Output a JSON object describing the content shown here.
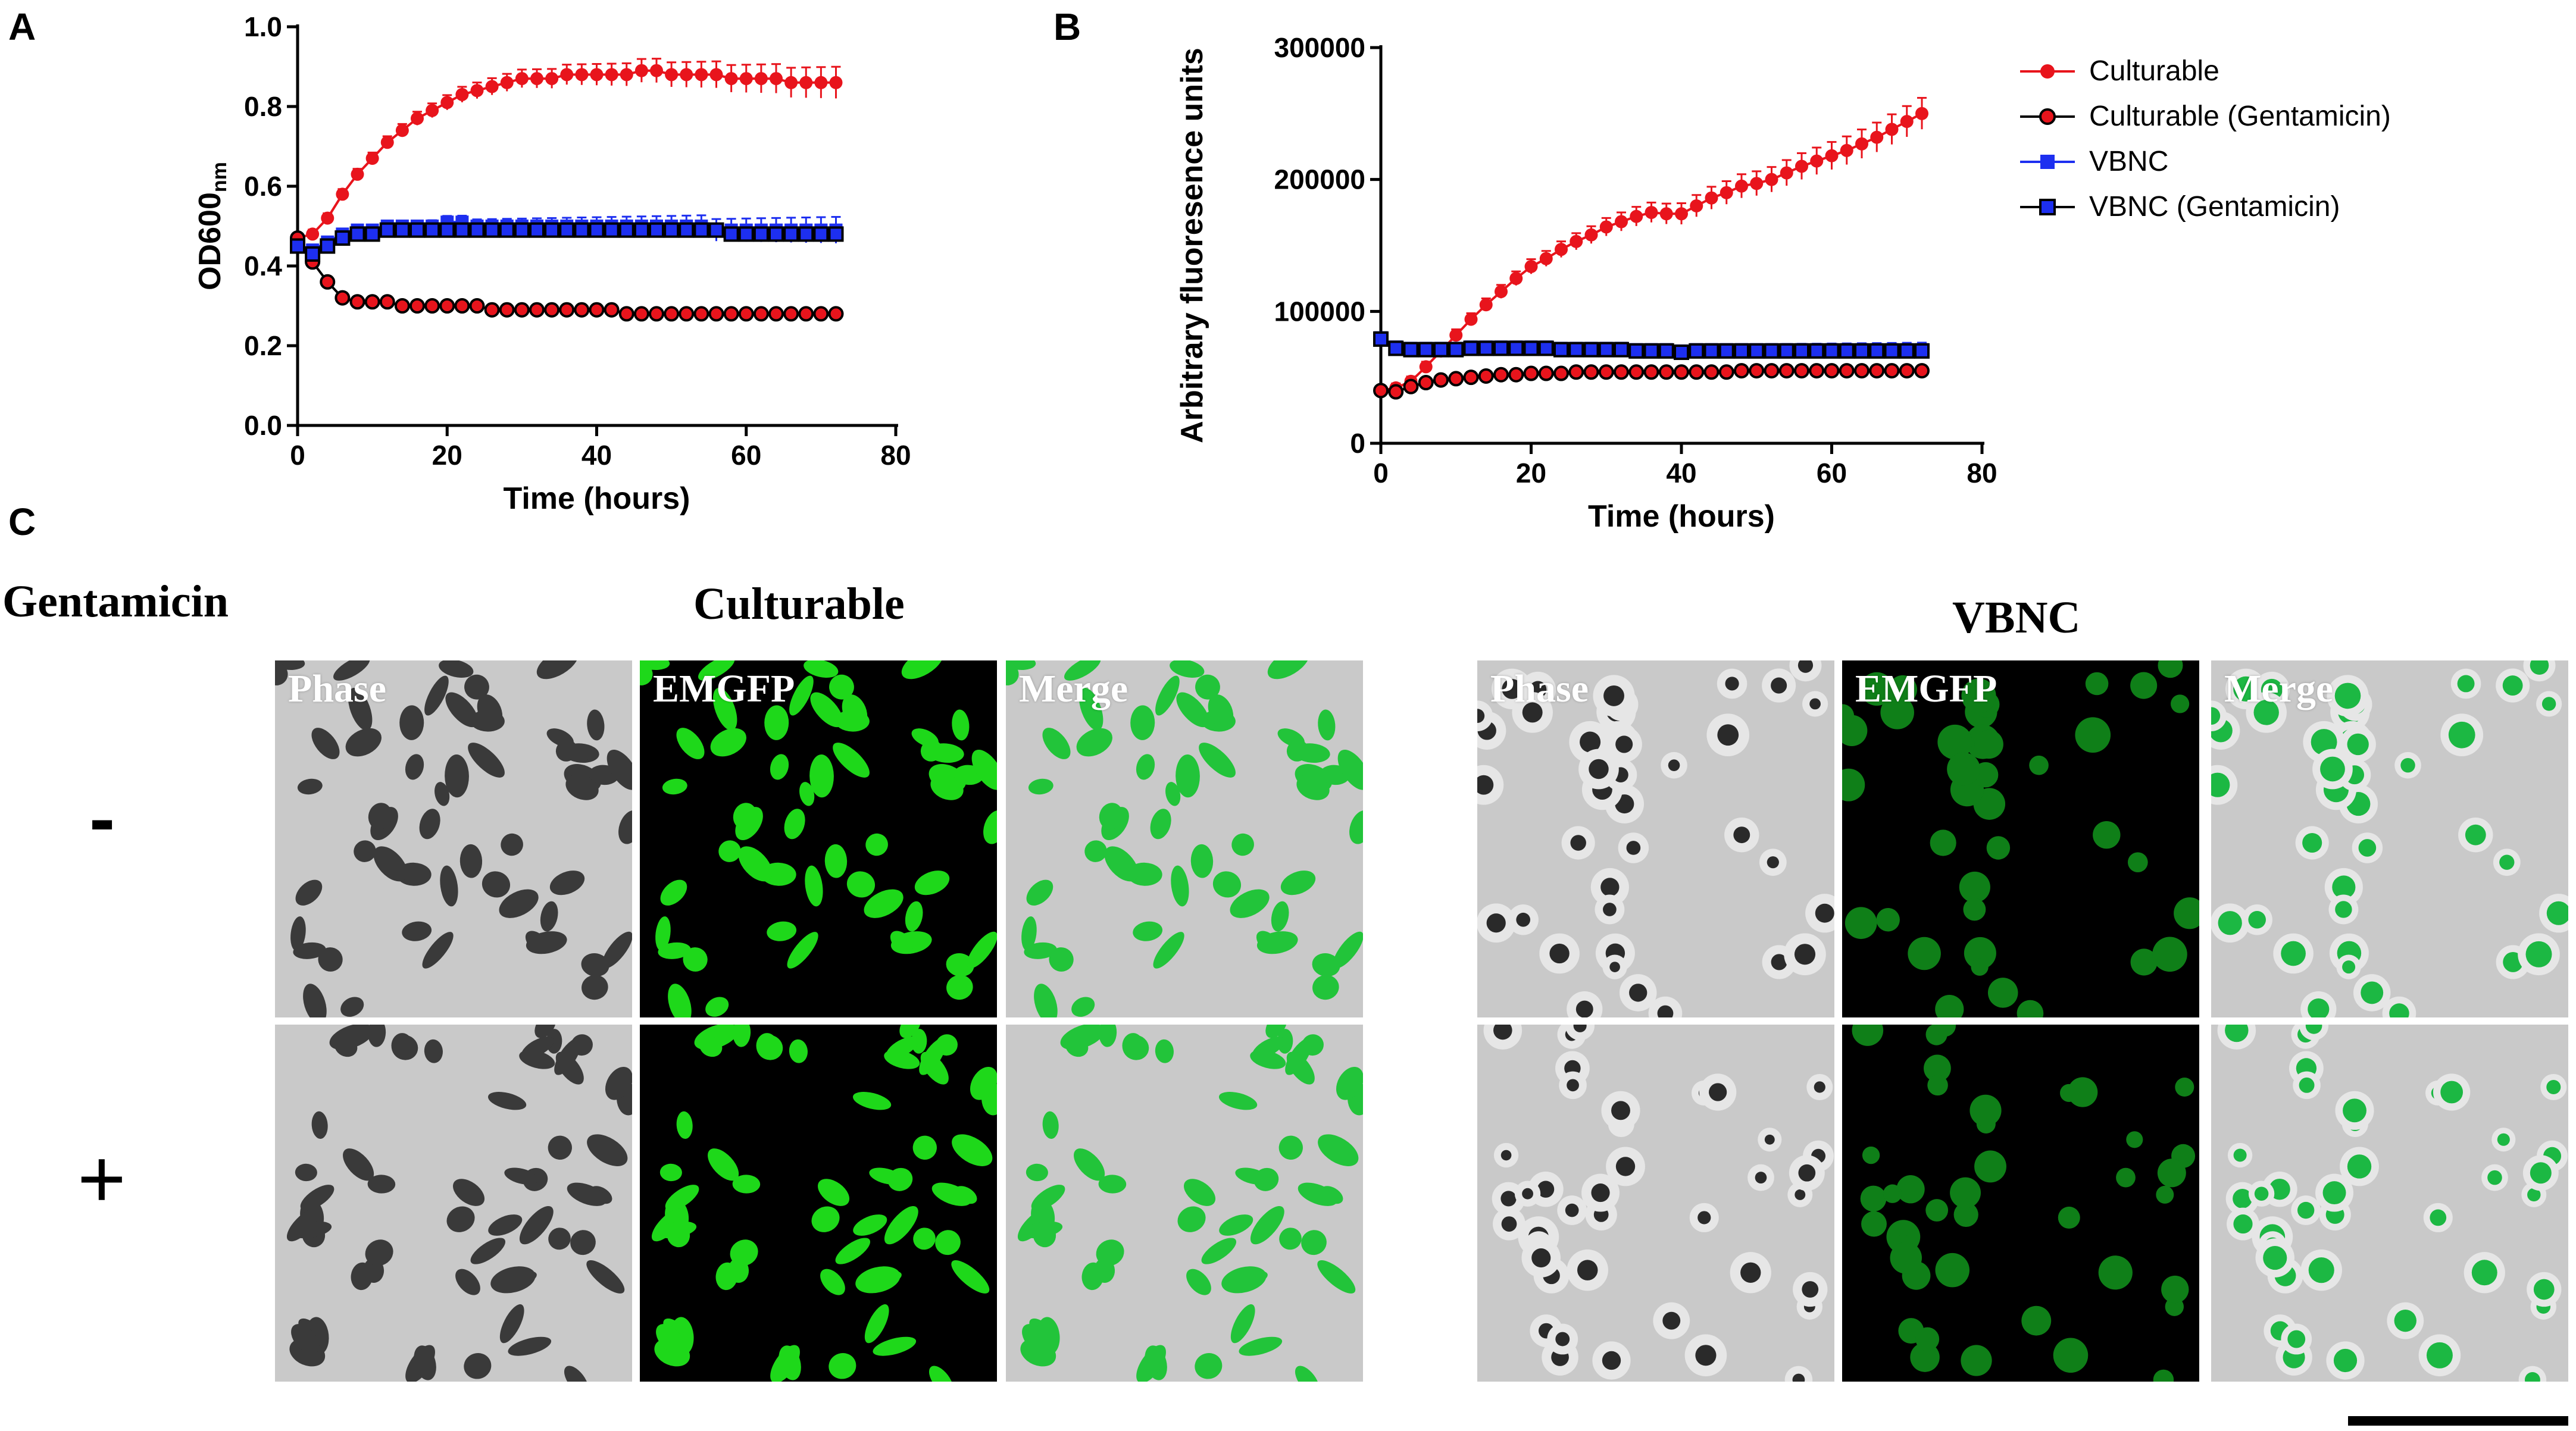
{
  "panels": {
    "a": "A",
    "b": "B",
    "c": "C"
  },
  "chart_data": [
    {
      "panel": "A",
      "type": "line",
      "ylabel_main": "OD600",
      "ylabel_sub": "nm",
      "xlabel": "Time (hours)",
      "xlim": [
        0,
        80
      ],
      "ylim": [
        0,
        1.0
      ],
      "xticks": [
        0,
        20,
        40,
        60,
        80
      ],
      "yticks": [
        "0.0",
        "0.2",
        "0.4",
        "0.6",
        "0.8",
        "1.0"
      ],
      "series": [
        {
          "name": "Culturable",
          "color": "#e8141c",
          "marker": "circle",
          "x": [
            0,
            2,
            4,
            6,
            8,
            10,
            12,
            14,
            16,
            18,
            20,
            22,
            24,
            26,
            28,
            30,
            32,
            34,
            36,
            38,
            40,
            42,
            44,
            46,
            48,
            50,
            52,
            54,
            56,
            58,
            60,
            62,
            64,
            66,
            68,
            70,
            72
          ],
          "y": [
            0.47,
            0.48,
            0.52,
            0.58,
            0.63,
            0.67,
            0.71,
            0.74,
            0.77,
            0.79,
            0.81,
            0.83,
            0.84,
            0.85,
            0.86,
            0.87,
            0.87,
            0.87,
            0.88,
            0.88,
            0.88,
            0.88,
            0.88,
            0.89,
            0.89,
            0.88,
            0.88,
            0.88,
            0.88,
            0.87,
            0.87,
            0.87,
            0.87,
            0.86,
            0.86,
            0.86,
            0.86
          ]
        },
        {
          "name": "Culturable (Gentamicin)",
          "color": "#e8141c",
          "marker": "circle-outline",
          "x": [
            0,
            2,
            4,
            6,
            8,
            10,
            12,
            14,
            16,
            18,
            20,
            22,
            24,
            26,
            28,
            30,
            32,
            34,
            36,
            38,
            40,
            42,
            44,
            46,
            48,
            50,
            52,
            54,
            56,
            58,
            60,
            62,
            64,
            66,
            68,
            70,
            72
          ],
          "y": [
            0.47,
            0.41,
            0.36,
            0.32,
            0.31,
            0.31,
            0.31,
            0.3,
            0.3,
            0.3,
            0.3,
            0.3,
            0.3,
            0.29,
            0.29,
            0.29,
            0.29,
            0.29,
            0.29,
            0.29,
            0.29,
            0.29,
            0.28,
            0.28,
            0.28,
            0.28,
            0.28,
            0.28,
            0.28,
            0.28,
            0.28,
            0.28,
            0.28,
            0.28,
            0.28,
            0.28,
            0.28
          ]
        },
        {
          "name": "VBNC",
          "color": "#1d2ff0",
          "marker": "square",
          "x": [
            0,
            2,
            4,
            6,
            8,
            10,
            12,
            14,
            16,
            18,
            20,
            22,
            24,
            26,
            28,
            30,
            32,
            34,
            36,
            38,
            40,
            42,
            44,
            46,
            48,
            50,
            52,
            54,
            56,
            58,
            60,
            62,
            64,
            66,
            68,
            70,
            72
          ],
          "y": [
            0.45,
            0.44,
            0.46,
            0.48,
            0.49,
            0.49,
            0.5,
            0.5,
            0.5,
            0.5,
            0.51,
            0.51,
            0.5,
            0.5,
            0.5,
            0.5,
            0.5,
            0.5,
            0.5,
            0.5,
            0.5,
            0.5,
            0.5,
            0.5,
            0.5,
            0.5,
            0.5,
            0.5,
            0.49,
            0.49,
            0.49,
            0.49,
            0.49,
            0.49,
            0.49,
            0.49,
            0.49
          ]
        },
        {
          "name": "VBNC (Gentamicin)",
          "color": "#1d2ff0",
          "marker": "square-outline",
          "x": [
            0,
            2,
            4,
            6,
            8,
            10,
            12,
            14,
            16,
            18,
            20,
            22,
            24,
            26,
            28,
            30,
            32,
            34,
            36,
            38,
            40,
            42,
            44,
            46,
            48,
            50,
            52,
            54,
            56,
            58,
            60,
            62,
            64,
            66,
            68,
            70,
            72
          ],
          "y": [
            0.45,
            0.43,
            0.45,
            0.47,
            0.48,
            0.48,
            0.49,
            0.49,
            0.49,
            0.49,
            0.49,
            0.49,
            0.49,
            0.49,
            0.49,
            0.49,
            0.49,
            0.49,
            0.49,
            0.49,
            0.49,
            0.49,
            0.49,
            0.49,
            0.49,
            0.49,
            0.49,
            0.49,
            0.49,
            0.48,
            0.48,
            0.48,
            0.48,
            0.48,
            0.48,
            0.48,
            0.48
          ]
        }
      ]
    },
    {
      "panel": "B",
      "type": "line",
      "ylabel": "Arbitrary fluoresence units",
      "xlabel": "Time (hours)",
      "xlim": [
        0,
        80
      ],
      "ylim": [
        0,
        300000
      ],
      "xticks": [
        0,
        20,
        40,
        60,
        80
      ],
      "yticks": [
        "0",
        "100000",
        "200000",
        "300000"
      ],
      "series": [
        {
          "name": "Culturable",
          "color": "#e8141c",
          "marker": "circle",
          "x": [
            0,
            2,
            4,
            6,
            8,
            10,
            12,
            14,
            16,
            18,
            20,
            22,
            24,
            26,
            28,
            30,
            32,
            34,
            36,
            38,
            40,
            42,
            44,
            46,
            48,
            50,
            52,
            54,
            56,
            58,
            60,
            62,
            64,
            66,
            68,
            70,
            72
          ],
          "y": [
            40000,
            42000,
            47000,
            58000,
            70000,
            82000,
            94000,
            105000,
            115000,
            125000,
            134000,
            140000,
            147000,
            153000,
            158000,
            164000,
            168000,
            172000,
            175000,
            174000,
            174000,
            180000,
            186000,
            190000,
            195000,
            197000,
            200000,
            205000,
            210000,
            214000,
            218000,
            222000,
            227000,
            232000,
            238000,
            244000,
            250000
          ]
        },
        {
          "name": "Culturable (Gentamicin)",
          "color": "#e8141c",
          "marker": "circle-outline",
          "x": [
            0,
            2,
            4,
            6,
            8,
            10,
            12,
            14,
            16,
            18,
            20,
            22,
            24,
            26,
            28,
            30,
            32,
            34,
            36,
            38,
            40,
            42,
            44,
            46,
            48,
            50,
            52,
            54,
            56,
            58,
            60,
            62,
            64,
            66,
            68,
            70,
            72
          ],
          "y": [
            40000,
            39000,
            43000,
            46000,
            48000,
            49000,
            50000,
            51000,
            52000,
            52000,
            53000,
            53000,
            53000,
            54000,
            54000,
            54000,
            54000,
            54000,
            54000,
            54000,
            54000,
            54000,
            54000,
            54000,
            55000,
            55000,
            55000,
            55000,
            55000,
            55000,
            55000,
            55000,
            55000,
            55000,
            55000,
            55000,
            55000
          ]
        },
        {
          "name": "VBNC",
          "color": "#1d2ff0",
          "marker": "square",
          "x": [
            0,
            2,
            4,
            6,
            8,
            10,
            12,
            14,
            16,
            18,
            20,
            22,
            24,
            26,
            28,
            30,
            32,
            34,
            36,
            38,
            40,
            42,
            44,
            46,
            48,
            50,
            52,
            54,
            56,
            58,
            60,
            62,
            64,
            66,
            68,
            70,
            72
          ],
          "y": [
            80000,
            73000,
            72000,
            72000,
            72000,
            72000,
            73000,
            73000,
            73000,
            73000,
            73000,
            73000,
            72000,
            72000,
            72000,
            72000,
            72000,
            71000,
            71000,
            71000,
            70000,
            71000,
            71000,
            71000,
            71000,
            71000,
            71000,
            71000,
            71000,
            71000,
            71000,
            71000,
            71000,
            71000,
            71000,
            71000,
            71000
          ]
        },
        {
          "name": "VBNC (Gentamicin)",
          "color": "#1d2ff0",
          "marker": "square-outline",
          "x": [
            0,
            2,
            4,
            6,
            8,
            10,
            12,
            14,
            16,
            18,
            20,
            22,
            24,
            26,
            28,
            30,
            32,
            34,
            36,
            38,
            40,
            42,
            44,
            46,
            48,
            50,
            52,
            54,
            56,
            58,
            60,
            62,
            64,
            66,
            68,
            70,
            72
          ],
          "y": [
            79000,
            72000,
            71000,
            71000,
            71000,
            71000,
            72000,
            72000,
            72000,
            72000,
            72000,
            72000,
            71000,
            71000,
            71000,
            71000,
            71000,
            70000,
            70000,
            70000,
            69000,
            70000,
            70000,
            70000,
            70000,
            70000,
            70000,
            70000,
            70000,
            70000,
            70000,
            70000,
            70000,
            70000,
            70000,
            70000,
            70000
          ]
        }
      ]
    }
  ],
  "legend": [
    {
      "label": "Culturable",
      "color": "#e8141c",
      "marker": "circle"
    },
    {
      "label": "Culturable (Gentamicin)",
      "color": "#e8141c",
      "marker": "circle-outline"
    },
    {
      "label": "VBNC",
      "color": "#1d2ff0",
      "marker": "square"
    },
    {
      "label": "VBNC (Gentamicin)",
      "color": "#1d2ff0",
      "marker": "square-outline"
    }
  ],
  "micrographs": {
    "row_header": "Gentamicin",
    "rows": [
      "-",
      "+"
    ],
    "groups": [
      {
        "title": "Culturable",
        "channels": [
          "Phase",
          "EMGFP",
          "Merge"
        ]
      },
      {
        "title": "VBNC",
        "channels": [
          "Phase",
          "EMGFP",
          "Merge"
        ]
      }
    ]
  }
}
